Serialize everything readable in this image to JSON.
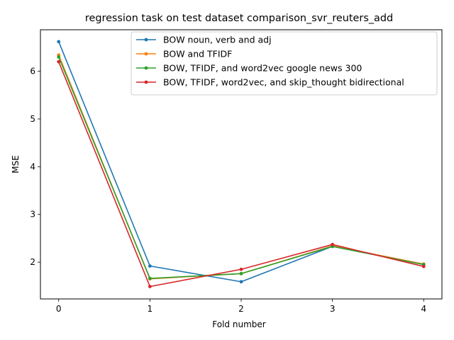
{
  "chart_data": {
    "type": "line",
    "title": "regression task on test dataset comparison_svr_reuters_add",
    "xlabel": "Fold number",
    "ylabel": "MSE",
    "x": [
      0,
      1,
      2,
      3,
      4
    ],
    "xticks": [
      "0",
      "1",
      "2",
      "3",
      "4"
    ],
    "yticks": [
      "2",
      "3",
      "4",
      "5",
      "6"
    ],
    "xlim": [
      -0.2,
      4.2
    ],
    "ylim": [
      1.23,
      6.87
    ],
    "grid": false,
    "legend_position": "upper right",
    "series": [
      {
        "name": "BOW noun, verb and adj",
        "color": "#1f77b4",
        "values": [
          6.62,
          1.92,
          1.59,
          2.33,
          1.95
        ]
      },
      {
        "name": "BOW and TFIDF",
        "color": "#ff7f0e",
        "values": [
          6.34,
          1.65,
          1.76,
          2.34,
          1.96
        ]
      },
      {
        "name": "BOW, TFIDF, and word2vec google news 300",
        "color": "#2ca02c",
        "values": [
          6.3,
          1.66,
          1.76,
          2.33,
          1.95
        ]
      },
      {
        "name": "BOW, TFIDF, word2vec, and skip_thought bidirectional",
        "color": "#d62728",
        "values": [
          6.2,
          1.49,
          1.85,
          2.37,
          1.91
        ]
      }
    ]
  }
}
